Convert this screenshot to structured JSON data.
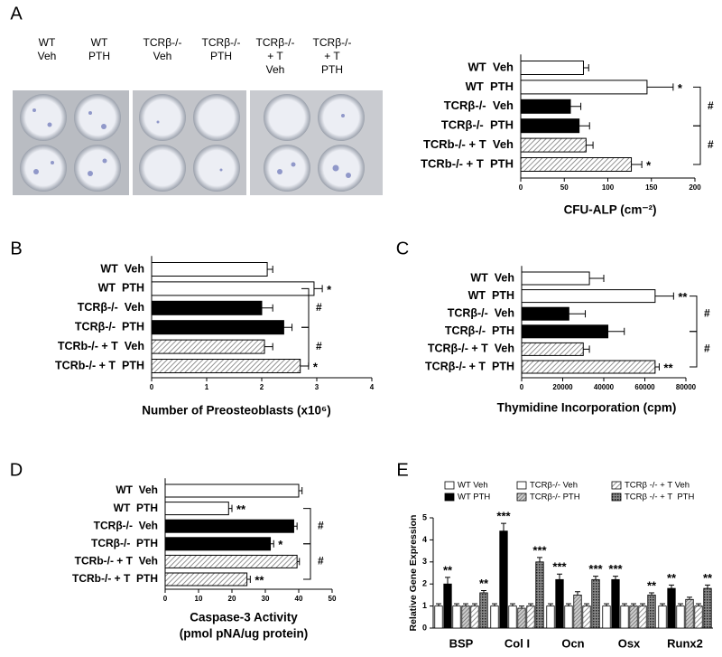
{
  "chart_data": [
    {
      "type": "hbar",
      "panel": "A",
      "photo_labels": [
        [
          "WT",
          "Veh"
        ],
        [
          "WT",
          "PTH"
        ],
        [
          "TCRβ-/-",
          "Veh"
        ],
        [
          "TCRβ-/-",
          "PTH"
        ],
        [
          "TCRβ-/-",
          "+ T",
          "Veh"
        ],
        [
          "TCRβ-/-",
          "+ T",
          "PTH"
        ]
      ],
      "categories": [
        "WT  Veh",
        "WT  PTH",
        "TCRβ-/-  Veh",
        "TCRβ-/-  PTH",
        "TCRb-/- + T  Veh",
        "TCRb-/- + T  PTH"
      ],
      "values": [
        72,
        145,
        57,
        67,
        75,
        127
      ],
      "errors": [
        6,
        30,
        12,
        12,
        8,
        12
      ],
      "fills": [
        "white",
        "white",
        "black",
        "black",
        "hatch",
        "hatch"
      ],
      "annotations": [
        null,
        "*",
        null,
        null,
        null,
        "*"
      ],
      "brackets": [
        "#",
        "#"
      ],
      "xlim": [
        0,
        200
      ],
      "xticks": [
        0,
        50,
        100,
        150,
        200
      ],
      "xlabel": [
        "CFU-ALP (cm⁻²)"
      ]
    },
    {
      "type": "hbar",
      "panel": "B",
      "categories": [
        "WT  Veh",
        "WT  PTH",
        "TCRβ-/-  Veh",
        "TCRβ-/-  PTH",
        "TCRb-/- + T  Veh",
        "TCRb-/- + T  PTH"
      ],
      "values": [
        2.1,
        2.95,
        2.0,
        2.4,
        2.05,
        2.7
      ],
      "errors": [
        0.1,
        0.15,
        0.2,
        0.15,
        0.15,
        0.15
      ],
      "fills": [
        "white",
        "white",
        "black",
        "black",
        "hatch",
        "hatch"
      ],
      "annotations": [
        null,
        "*",
        null,
        null,
        null,
        "*"
      ],
      "brackets": [
        "#",
        "#"
      ],
      "xlim": [
        0,
        4
      ],
      "xticks": [
        0,
        1,
        2,
        3,
        4
      ],
      "xlabel": [
        "Number of Preosteoblasts (x10⁶)"
      ]
    },
    {
      "type": "hbar",
      "panel": "C",
      "categories": [
        "WT  Veh",
        "WT  PTH",
        "TCRβ-/-  Veh",
        "TCRβ-/-  PTH",
        "TCRβ-/- + T  Veh",
        "TCRβ-/- + T  PTH"
      ],
      "values": [
        33000,
        65000,
        23000,
        42000,
        30000,
        65000
      ],
      "errors": [
        7000,
        9000,
        8000,
        8000,
        3000,
        2000
      ],
      "fills": [
        "white",
        "white",
        "black",
        "black",
        "hatch",
        "hatch"
      ],
      "annotations": [
        null,
        "**",
        null,
        null,
        null,
        "**"
      ],
      "brackets": [
        "#",
        "#"
      ],
      "xlim": [
        0,
        80000
      ],
      "xticks": [
        0,
        20000,
        40000,
        60000,
        80000
      ],
      "xlabel": [
        "Thymidine Incorporation (cpm)"
      ]
    },
    {
      "type": "hbar",
      "panel": "D",
      "categories": [
        "WT  Veh",
        "WT  PTH",
        "TCRβ-/-  Veh",
        "TCRβ-/-  PTH",
        "TCRb-/- + T  Veh",
        "TCRb-/- + T  PTH"
      ],
      "values": [
        40,
        19,
        38.5,
        31.5,
        39.5,
        24.5
      ],
      "errors": [
        1,
        1,
        1,
        1,
        0.7,
        1
      ],
      "fills": [
        "white",
        "white",
        "black",
        "black",
        "hatch",
        "hatch"
      ],
      "annotations": [
        null,
        "**",
        null,
        "*",
        null,
        "**"
      ],
      "brackets": [
        "#",
        "#"
      ],
      "xlim": [
        0,
        50
      ],
      "xticks": [
        0,
        10,
        20,
        30,
        40,
        50
      ],
      "xlabel": [
        "Caspase-3 Activity",
        "(pmol pNA/ug protein)"
      ]
    },
    {
      "type": "grouped-bar",
      "panel": "E",
      "categories": [
        "BSP",
        "Col I",
        "Ocn",
        "Osx",
        "Runx2"
      ],
      "ylabel": "Relative Gene Expression",
      "ylim": [
        0,
        5
      ],
      "yticks": [
        0,
        1,
        2,
        3,
        4,
        5
      ],
      "series": [
        {
          "name": "WT Veh",
          "fill": "white",
          "values": [
            1.0,
            1.0,
            1.0,
            1.0,
            1.0
          ],
          "errors": [
            0.1,
            0.1,
            0.1,
            0.1,
            0.1
          ],
          "annotations": [
            null,
            null,
            null,
            null,
            null
          ]
        },
        {
          "name": "WT PTH",
          "fill": "black",
          "values": [
            2.0,
            4.4,
            2.2,
            2.2,
            1.8
          ],
          "errors": [
            0.3,
            0.35,
            0.25,
            0.15,
            0.15
          ],
          "annotations": [
            "**",
            "***",
            "***",
            "***",
            "**"
          ]
        },
        {
          "name": "TCRβ-/- Veh",
          "fill": "white",
          "values": [
            1.0,
            1.0,
            1.0,
            1.0,
            1.0
          ],
          "errors": [
            0.1,
            0.1,
            0.1,
            0.1,
            0.1
          ],
          "annotations": [
            null,
            null,
            null,
            null,
            null
          ]
        },
        {
          "name": "TCRβ-/- PTH",
          "fill": "gray-hatch",
          "values": [
            1.0,
            0.9,
            1.5,
            1.0,
            1.3
          ],
          "errors": [
            0.1,
            0.1,
            0.15,
            0.1,
            0.1
          ],
          "annotations": [
            null,
            null,
            null,
            null,
            null
          ]
        },
        {
          "name": "TCRβ -/- + T Veh",
          "fill": "hatch",
          "values": [
            1.0,
            1.0,
            1.0,
            1.0,
            1.0
          ],
          "errors": [
            0.1,
            0.1,
            0.1,
            0.1,
            0.1
          ],
          "annotations": [
            null,
            null,
            null,
            null,
            null
          ]
        },
        {
          "name": "TCRβ -/- + T  PTH",
          "fill": "dark-hatch",
          "values": [
            1.6,
            3.0,
            2.2,
            1.5,
            1.8
          ],
          "errors": [
            0.1,
            0.2,
            0.15,
            0.1,
            0.15
          ],
          "annotations": [
            "**",
            "***",
            "***",
            "**",
            "**"
          ]
        }
      ]
    }
  ]
}
